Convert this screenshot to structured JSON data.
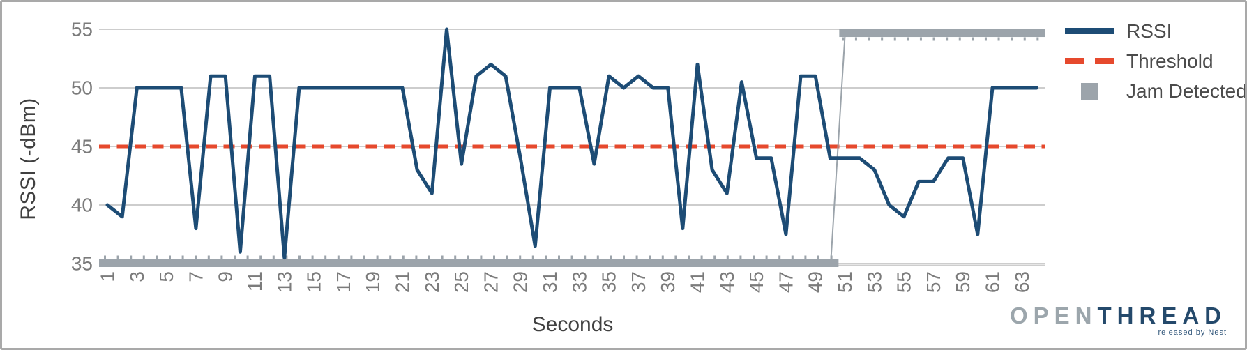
{
  "chart_data": {
    "type": "line",
    "title": "",
    "xlabel": "Seconds",
    "ylabel": "RSSI (-dBm)",
    "x_start": 1,
    "x_end": 64,
    "ylim": [
      35,
      55
    ],
    "grid": "horizontal",
    "legend_position": "top-right",
    "y_ticks": [
      55,
      50,
      45,
      40,
      35
    ],
    "x_ticks": [
      1,
      3,
      5,
      7,
      9,
      11,
      13,
      15,
      17,
      19,
      21,
      23,
      25,
      27,
      29,
      31,
      33,
      35,
      37,
      39,
      41,
      43,
      45,
      47,
      49,
      51,
      53,
      55,
      57,
      59,
      61,
      63
    ],
    "series": [
      {
        "name": "RSSI",
        "type": "line",
        "color": "#1D4C75",
        "values": [
          40,
          39,
          50,
          50,
          50,
          50,
          38,
          51,
          51,
          36,
          51,
          51,
          35.5,
          50,
          50,
          50,
          50,
          50,
          50,
          50,
          50,
          43,
          41,
          55,
          43.5,
          51,
          52,
          51,
          44,
          36.5,
          50,
          50,
          50,
          43.5,
          51,
          50,
          51,
          50,
          50,
          38,
          52,
          43,
          41,
          50.5,
          44,
          44,
          37.5,
          51,
          51,
          44,
          44,
          44,
          43,
          40,
          39,
          42,
          42,
          44,
          44,
          37.5,
          50,
          50,
          50,
          50
        ]
      },
      {
        "name": "Threshold",
        "type": "dashed-line",
        "color": "#E6492D",
        "value": 45
      },
      {
        "name": "Jam Detected",
        "type": "thick-segments",
        "color": "#9CA4AB",
        "segments": [
          {
            "start_sec": 1,
            "end_sec": 50,
            "level": 35
          },
          {
            "start_sec": 51,
            "end_sec": 64,
            "level": 54.7
          }
        ]
      }
    ]
  },
  "logo": {
    "open": "OPEN",
    "thread": "THREAD",
    "tagline": "released by Nest"
  }
}
